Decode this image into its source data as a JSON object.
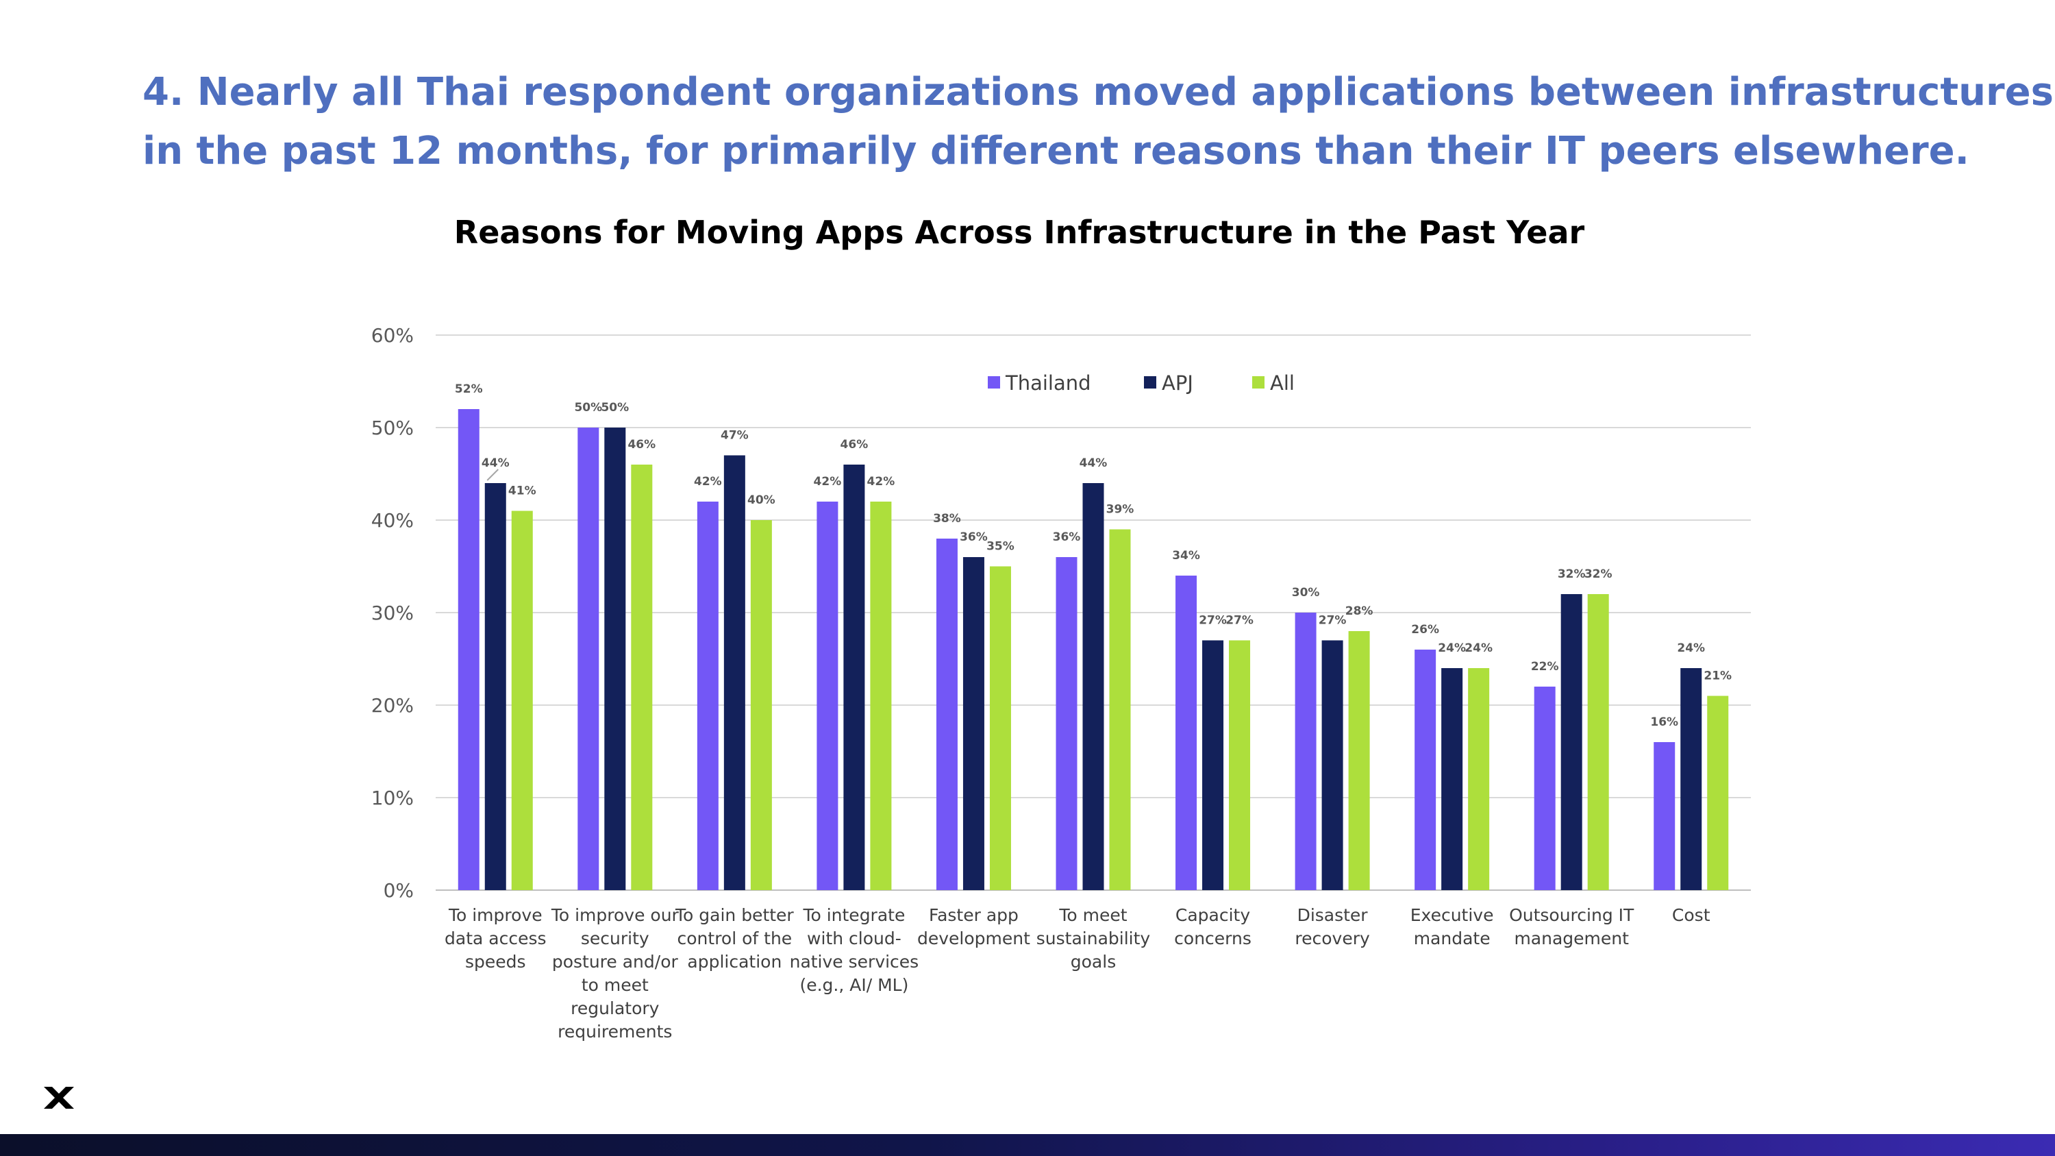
{
  "slide": {
    "headline_line1": "4. Nearly all Thai respondent organizations moved applications between infrastructures",
    "headline_line2": "in the past 12 months, for primarily different reasons than their IT peers elsewhere."
  },
  "chart_data": {
    "type": "bar",
    "title": "Reasons for Moving Apps Across Infrastructure in the Past Year",
    "xlabel": "",
    "ylabel": "",
    "ylim": [
      0,
      60
    ],
    "yticks": [
      "0%",
      "10%",
      "20%",
      "30%",
      "40%",
      "50%",
      "60%"
    ],
    "grid": true,
    "legend_position": "top-center",
    "categories": [
      [
        "To improve",
        "data access",
        "speeds"
      ],
      [
        "To improve our",
        "security",
        "posture and/or",
        "to meet",
        "regulatory",
        "requirements"
      ],
      [
        "To gain better",
        "control of the",
        "application"
      ],
      [
        "To integrate",
        "with cloud-",
        "native services",
        "(e.g., AI/ ML)"
      ],
      [
        "Faster app",
        "development"
      ],
      [
        "To meet",
        "sustainability",
        "goals"
      ],
      [
        "Capacity",
        "concerns"
      ],
      [
        "Disaster",
        "recovery"
      ],
      [
        "Executive",
        "mandate"
      ],
      [
        "Outsourcing IT",
        "management"
      ],
      [
        "Cost"
      ]
    ],
    "series": [
      {
        "name": "Thailand",
        "color": "#7357f6",
        "values": [
          52,
          50,
          42,
          42,
          38,
          36,
          34,
          30,
          26,
          22,
          16
        ],
        "labels": [
          "52%",
          "50%",
          "42%",
          "42%",
          "38%",
          "36%",
          "34%",
          "30%",
          "26%",
          "22%",
          "16%"
        ]
      },
      {
        "name": "APJ",
        "color": "#13215a",
        "values": [
          44,
          50,
          47,
          46,
          36,
          44,
          27,
          27,
          24,
          32,
          24
        ],
        "labels": [
          "44%",
          "50%",
          "47%",
          "46%",
          "36%",
          "44%",
          "27%",
          "27%",
          "24%",
          "32%",
          "24%"
        ]
      },
      {
        "name": "All",
        "color": "#addf3c",
        "values": [
          41,
          46,
          40,
          42,
          35,
          39,
          27,
          28,
          24,
          32,
          21
        ],
        "labels": [
          "41%",
          "46%",
          "40%",
          "42%",
          "35%",
          "39%",
          "27%",
          "28%",
          "24%",
          "32%",
          "21%"
        ]
      }
    ]
  },
  "colors": {
    "headline": "#4f6fbf",
    "gridline": "#d9d9d9",
    "logo": "#000000"
  }
}
